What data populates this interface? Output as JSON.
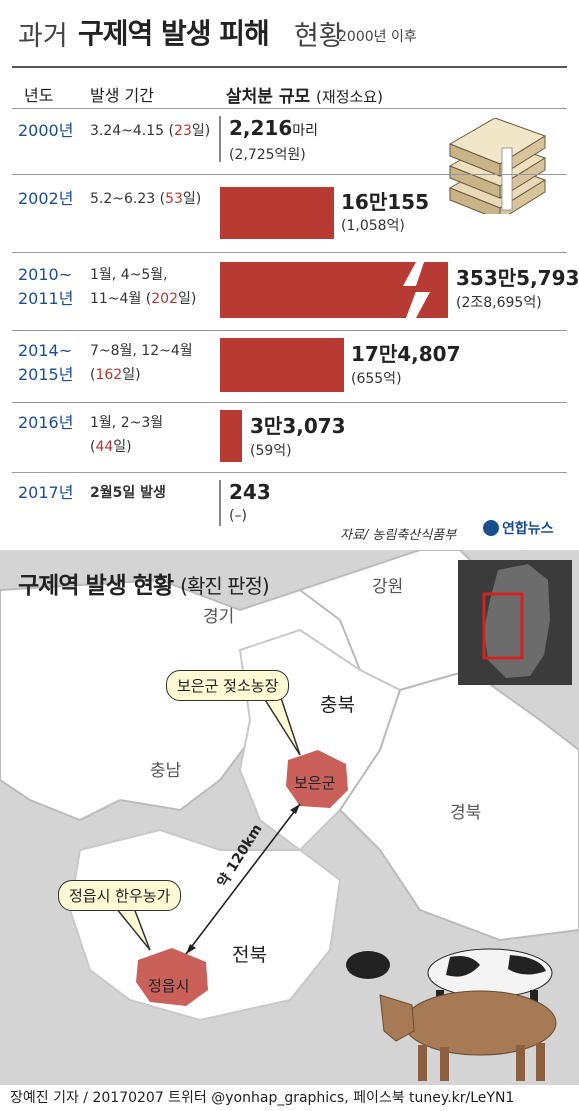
{
  "header": {
    "title_prefix": "과거",
    "title_main": "구제역 발생 피해",
    "title_suffix": "현황",
    "subtitle": "2000년 이후"
  },
  "table": {
    "columns": [
      "년도",
      "발생 기간",
      "살처분 규모",
      "(재정소요)"
    ],
    "rows": [
      {
        "year": [
          "2000년"
        ],
        "period": [
          "3.24~4.15 (",
          "23",
          "일)"
        ],
        "bold": "2,216",
        "unit": "마리",
        "cost": "(2,725억원)",
        "bar_value": 2216
      },
      {
        "year": [
          "2002년"
        ],
        "period": [
          "5.2~6.23 (",
          "53",
          "일)"
        ],
        "bold": "16만155",
        "unit": "",
        "cost": "(1,058억)",
        "bar_value": 160155
      },
      {
        "year": [
          "2010~",
          "2011년"
        ],
        "period": [
          "1월, 4~5월,",
          "11~4월 (",
          "202",
          "일)"
        ],
        "bold": "353만5,793",
        "unit": "",
        "cost": "(2조8,695억)",
        "bar_value": 3535793
      },
      {
        "year": [
          "2014~",
          "2015년"
        ],
        "period": [
          "7~8월, 12~4월",
          "(",
          "162",
          "일)"
        ],
        "bold": "17만4,807",
        "unit": "",
        "cost": "(655억)",
        "bar_value": 174807
      },
      {
        "year": [
          "2016년"
        ],
        "period": [
          "1월, 2~3월",
          "(",
          "44",
          "일)"
        ],
        "bold": "3만3,073",
        "unit": "",
        "cost": "(59억)",
        "bar_value": 33073
      },
      {
        "year": [
          "2017년"
        ],
        "period": [
          "2월5일 발생"
        ],
        "bold": "243",
        "unit": "",
        "cost": "(–)",
        "bar_value": 243
      }
    ],
    "source": "자료/ 농림축산식품부",
    "brand": "연합뉴스"
  },
  "map": {
    "title": "구제역 발생 현황",
    "title_note": "(확진 판정)",
    "regions": [
      "경기",
      "강원",
      "충북",
      "충남",
      "경북",
      "전북"
    ],
    "callout_top": "보은군 젖소농장",
    "callout_bottom": "정읍시 한우농가",
    "marker_boeun": "보은군",
    "marker_jeongeup": "정읍시",
    "distance": "약 120km"
  },
  "footer": "장예진 기자 / 20170207 트위터 @yonhap_graphics, 페이스북 tuney.kr/LeYN1",
  "colors": {
    "bar": "#b73b33",
    "year_text": "#1a4e8f",
    "marker": "#c9605a"
  }
}
